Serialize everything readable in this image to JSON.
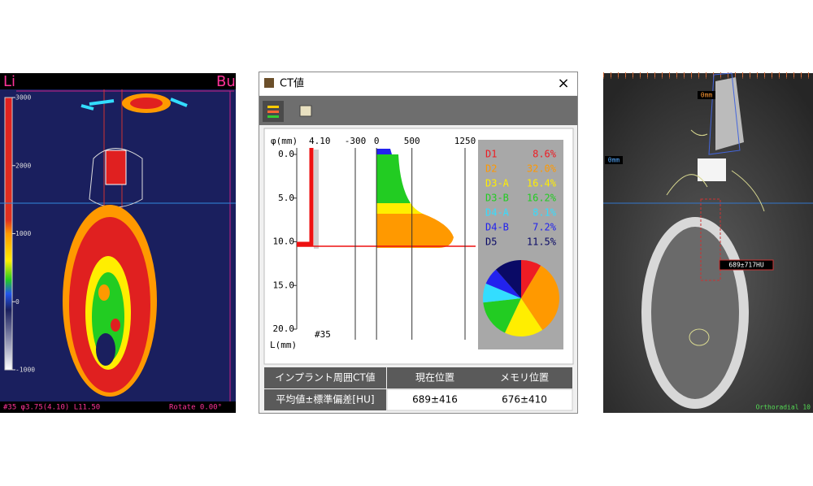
{
  "left_view": {
    "side_left": "Li",
    "side_right": "Bu",
    "scale": [
      3000,
      2000,
      1000,
      0,
      -1000
    ],
    "scale_lim": [
      -1000,
      3000
    ],
    "status": "#35 φ3.75(4.10) L11.50",
    "rotate": "Rotate 0.00°"
  },
  "dialog": {
    "title": "CT値",
    "close": "×",
    "profile": {
      "diameter_label": "φ(mm)",
      "diameter": "4.10",
      "xticks": [
        -300,
        0,
        500,
        1250
      ],
      "yticks": [
        {
          "value": 0,
          "label": "0.0"
        },
        {
          "value": 5,
          "label": "5.0"
        },
        {
          "value": 10,
          "label": "10.0"
        },
        {
          "value": 15,
          "label": "15.0"
        },
        {
          "value": 20,
          "label": "20.0"
        }
      ],
      "ylim": [
        0,
        20
      ],
      "y_label": "L(mm)",
      "tooth": "#35"
    },
    "classes": [
      {
        "name": "D1",
        "value": 8.6,
        "label": "8.6%",
        "color": "#ee1c24"
      },
      {
        "name": "D2",
        "value": 32.0,
        "label": "32.0%",
        "color": "#ff9900"
      },
      {
        "name": "D3-A",
        "value": 16.4,
        "label": "16.4%",
        "color": "#ffee00"
      },
      {
        "name": "D3-B",
        "value": 16.2,
        "label": "16.2%",
        "color": "#22cc22"
      },
      {
        "name": "D4-A",
        "value": 8.1,
        "label": "8.1%",
        "color": "#33ddff"
      },
      {
        "name": "D4-B",
        "value": 7.2,
        "label": "7.2%",
        "color": "#2222ee"
      },
      {
        "name": "D5",
        "value": 11.5,
        "label": "11.5%",
        "color": "#0a0a66"
      }
    ],
    "table": {
      "header": [
        "インプラント周囲CT値",
        "現在位置",
        "メモリ位置"
      ],
      "rows": [
        [
          "平均値±標準偏差[HU]",
          "689±416",
          "676±410"
        ]
      ]
    }
  },
  "right_view": {
    "marker_top": "0mm",
    "marker_left": "0mm",
    "measurement": "689±717HU",
    "mode": "Orthoradial 10"
  }
}
